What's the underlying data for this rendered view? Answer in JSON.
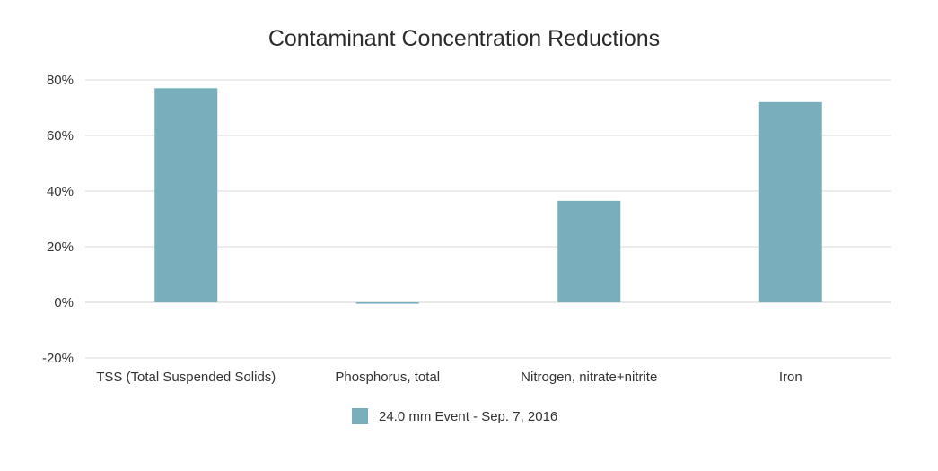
{
  "chart_data": {
    "type": "bar",
    "title": "Contaminant Concentration Reductions",
    "xlabel": "",
    "ylabel": "",
    "categories": [
      "TSS (Total Suspended Solids)",
      "Phosphorus, total",
      "Nitrogen, nitrate+nitrite",
      "Iron"
    ],
    "series": [
      {
        "name": "24.0 mm Event - Sep. 7, 2016",
        "values": [
          77,
          -0.5,
          36.5,
          72
        ],
        "color": "#79afbc"
      }
    ],
    "ylim": [
      -20,
      80
    ],
    "yticks": [
      80,
      60,
      40,
      20,
      0,
      -20
    ],
    "ytick_labels": [
      "80%",
      "60%",
      "40%",
      "20%",
      "0%",
      "-20%"
    ],
    "grid": true,
    "legend": "bottom-center"
  }
}
